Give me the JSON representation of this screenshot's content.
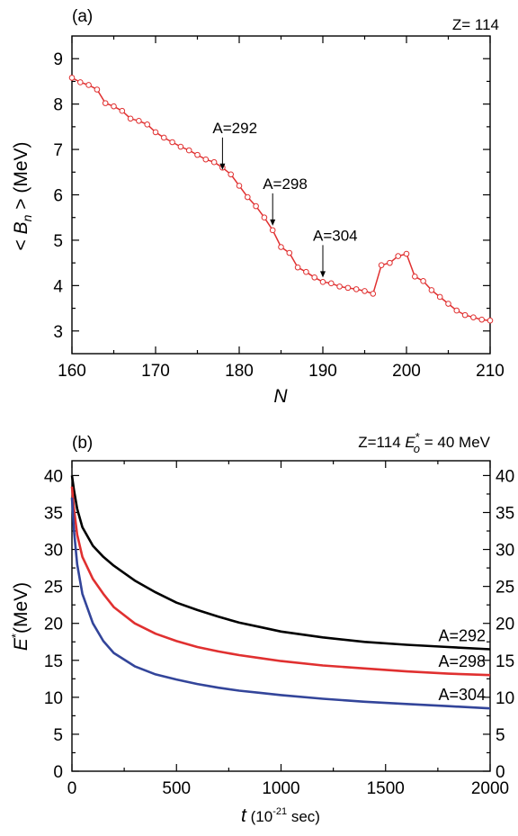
{
  "chart_data": [
    {
      "type": "line",
      "panel_label": "(a)",
      "corner_label": "Z= 114",
      "xlabel": "N",
      "ylabel_parts": [
        "< ",
        "B",
        "n",
        " > (MeV)"
      ],
      "xlim": [
        160,
        210
      ],
      "ylim": [
        2.5,
        9.5
      ],
      "xticks": [
        160,
        170,
        180,
        190,
        200,
        210
      ],
      "yticks": [
        3,
        4,
        5,
        6,
        7,
        8,
        9
      ],
      "grid": false,
      "series": [
        {
          "color": "#e03030",
          "marker": "open-circle",
          "x": [
            160,
            161,
            162,
            163,
            164,
            165,
            166,
            167,
            168,
            169,
            170,
            171,
            172,
            173,
            174,
            175,
            176,
            177,
            178,
            179,
            180,
            181,
            182,
            183,
            184,
            185,
            186,
            187,
            188,
            189,
            190,
            191,
            192,
            193,
            194,
            195,
            196,
            197,
            198,
            199,
            200,
            201,
            202,
            203,
            204,
            205,
            206,
            207,
            208,
            209,
            210
          ],
          "y": [
            8.58,
            8.48,
            8.42,
            8.32,
            8.02,
            7.95,
            7.85,
            7.68,
            7.63,
            7.55,
            7.38,
            7.26,
            7.16,
            7.06,
            6.98,
            6.88,
            6.78,
            6.72,
            6.6,
            6.45,
            6.2,
            5.95,
            5.75,
            5.5,
            5.22,
            4.85,
            4.72,
            4.4,
            4.3,
            4.18,
            4.08,
            4.05,
            3.98,
            3.95,
            3.92,
            3.88,
            3.82,
            4.45,
            4.5,
            4.65,
            4.7,
            4.2,
            4.1,
            3.9,
            3.75,
            3.6,
            3.45,
            3.35,
            3.3,
            3.25,
            3.23
          ]
        }
      ],
      "annotations": [
        {
          "text": "A=292",
          "x": 178,
          "y": 6.45
        },
        {
          "text": "A=298",
          "x": 184,
          "y": 5.22
        },
        {
          "text": "A=304",
          "x": 190,
          "y": 4.08
        }
      ]
    },
    {
      "type": "line",
      "panel_label": "(b)",
      "corner_label_parts": [
        "Z=114   ",
        "E",
        "*",
        "o",
        " = 40 MeV"
      ],
      "xlabel_parts": [
        "t",
        "  (10",
        "-21",
        " sec)"
      ],
      "ylabel_parts": [
        "E",
        "*",
        "(MeV)"
      ],
      "xlim": [
        0,
        2000
      ],
      "ylim": [
        0,
        42
      ],
      "xticks": [
        0,
        500,
        1000,
        1500,
        2000
      ],
      "yticks": [
        0,
        5,
        10,
        15,
        20,
        25,
        30,
        35,
        40
      ],
      "grid": false,
      "series": [
        {
          "name": "A=292",
          "color": "#000000",
          "x": [
            0,
            10,
            25,
            50,
            100,
            150,
            200,
            300,
            400,
            500,
            600,
            700,
            800,
            900,
            1000,
            1200,
            1400,
            1600,
            1800,
            2000
          ],
          "y": [
            40,
            38,
            35.5,
            33,
            30.5,
            29,
            27.8,
            25.8,
            24.2,
            22.8,
            21.8,
            20.9,
            20.1,
            19.5,
            18.9,
            18.1,
            17.5,
            17.1,
            16.8,
            16.5
          ]
        },
        {
          "name": "A=298",
          "color": "#e03030",
          "x": [
            0,
            10,
            25,
            50,
            100,
            150,
            200,
            300,
            400,
            500,
            600,
            700,
            800,
            900,
            1000,
            1200,
            1400,
            1600,
            1800,
            2000
          ],
          "y": [
            38.5,
            35.5,
            32,
            29,
            26,
            24,
            22.2,
            20,
            18.6,
            17.6,
            16.8,
            16.2,
            15.7,
            15.3,
            14.9,
            14.3,
            13.9,
            13.5,
            13.2,
            13
          ]
        },
        {
          "name": "A=304",
          "color": "#33459a",
          "x": [
            0,
            10,
            25,
            50,
            100,
            150,
            200,
            300,
            400,
            500,
            600,
            700,
            800,
            900,
            1000,
            1200,
            1400,
            1600,
            1800,
            2000
          ],
          "y": [
            37,
            32.5,
            28,
            24,
            20,
            17.6,
            16,
            14.2,
            13.1,
            12.4,
            11.8,
            11.3,
            10.9,
            10.6,
            10.3,
            9.8,
            9.4,
            9.1,
            8.8,
            8.5
          ]
        }
      ]
    }
  ]
}
